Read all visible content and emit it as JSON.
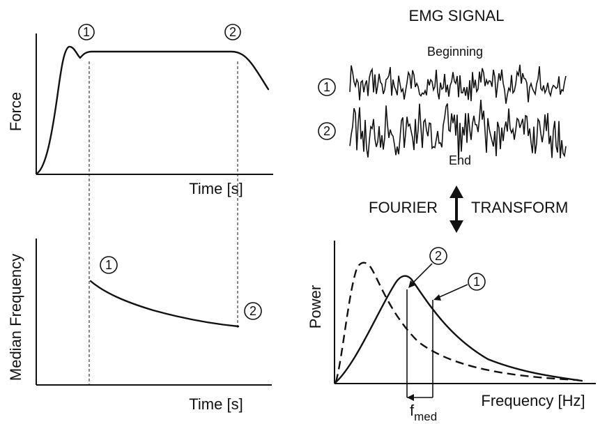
{
  "force_panel": {
    "ylabel": "Force",
    "xlabel": "Time  [s]",
    "marker_1": "1",
    "marker_2": "2"
  },
  "median_panel": {
    "ylabel": "Median  Frequency",
    "xlabel": "Time  [s]",
    "marker_1": "1",
    "marker_2": "2"
  },
  "emg_panel": {
    "title": "EMG  SIGNAL",
    "beginning_label": "Beginning",
    "end_label": "End",
    "marker_1": "1",
    "marker_2": "2"
  },
  "transform": {
    "left": "FOURIER",
    "right": "TRANSFORM"
  },
  "power_panel": {
    "ylabel": "Power",
    "xlabel": "Frequency  [Hz]",
    "fmed_main": "f",
    "fmed_sub": "med",
    "marker_1": "1",
    "marker_2": "2"
  }
}
